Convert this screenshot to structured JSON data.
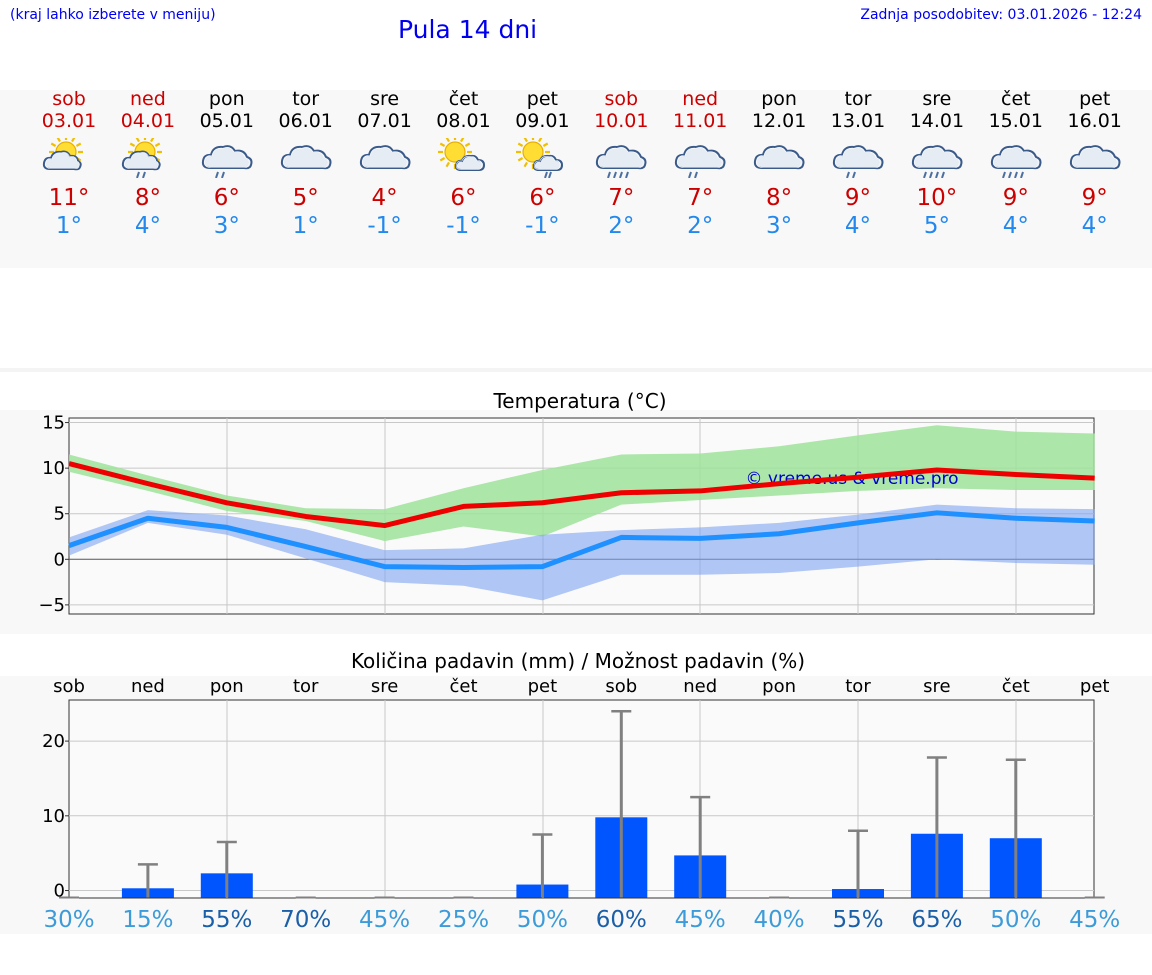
{
  "header": {
    "hint": "(kraj lahko izberete v meniju)",
    "title": "Pula 14 dni",
    "updated": "Zadnja posodobitev: 03.01.2026 - 12:24"
  },
  "colors": {
    "weekend": "#cc0000",
    "weekday": "#000000",
    "max": "#ee0000",
    "min": "#1e90ff",
    "bar": "#0055ff"
  },
  "days": [
    {
      "name": "sob",
      "date": "03.01",
      "weekend": true,
      "icon": "partly-cloudy-icon",
      "max": "11°",
      "min": "1°"
    },
    {
      "name": "ned",
      "date": "04.01",
      "weekend": true,
      "icon": "partly-cloudy-rain-icon",
      "max": "8°",
      "min": "4°"
    },
    {
      "name": "pon",
      "date": "05.01",
      "weekend": false,
      "icon": "cloud-rain-icon",
      "max": "6°",
      "min": "3°"
    },
    {
      "name": "tor",
      "date": "06.01",
      "weekend": false,
      "icon": "cloud-icon",
      "max": "5°",
      "min": "1°"
    },
    {
      "name": "sre",
      "date": "07.01",
      "weekend": false,
      "icon": "cloud-icon",
      "max": "4°",
      "min": "-1°"
    },
    {
      "name": "čet",
      "date": "08.01",
      "weekend": false,
      "icon": "sun-cloud-icon",
      "max": "6°",
      "min": "-1°"
    },
    {
      "name": "pet",
      "date": "09.01",
      "weekend": false,
      "icon": "sun-cloud-rain-icon",
      "max": "6°",
      "min": "-1°"
    },
    {
      "name": "sob",
      "date": "10.01",
      "weekend": true,
      "icon": "cloud-heavy-rain-icon",
      "max": "7°",
      "min": "2°"
    },
    {
      "name": "ned",
      "date": "11.01",
      "weekend": true,
      "icon": "cloud-rain-icon",
      "max": "7°",
      "min": "2°"
    },
    {
      "name": "pon",
      "date": "12.01",
      "weekend": false,
      "icon": "cloud-icon",
      "max": "8°",
      "min": "3°"
    },
    {
      "name": "tor",
      "date": "13.01",
      "weekend": false,
      "icon": "cloud-rain-icon",
      "max": "9°",
      "min": "4°"
    },
    {
      "name": "sre",
      "date": "14.01",
      "weekend": false,
      "icon": "cloud-heavy-rain-icon",
      "max": "10°",
      "min": "5°"
    },
    {
      "name": "čet",
      "date": "15.01",
      "weekend": false,
      "icon": "cloud-heavy-rain-icon",
      "max": "9°",
      "min": "4°"
    },
    {
      "name": "pet",
      "date": "16.01",
      "weekend": false,
      "icon": "cloud-icon",
      "max": "9°",
      "min": "4°"
    }
  ],
  "chart_data": [
    {
      "type": "line",
      "title": "Temperatura (°C)",
      "watermark": "© vreme.us & vreme.pro",
      "ylim": [
        -6,
        15.5
      ],
      "yticks": [
        15,
        10,
        5,
        0,
        -5
      ],
      "ytick_labels": [
        "15",
        "10",
        "5",
        "0",
        "−5"
      ],
      "grid": true,
      "series": [
        {
          "name": "max",
          "values": [
            10.5,
            8.3,
            6.2,
            4.7,
            3.7,
            5.8,
            6.2,
            7.3,
            7.5,
            8.3,
            9.0,
            9.8,
            9.3,
            8.9
          ]
        },
        {
          "name": "min",
          "values": [
            1.5,
            4.5,
            3.5,
            1.4,
            -0.8,
            -0.9,
            -0.8,
            2.4,
            2.3,
            2.8,
            4.0,
            5.1,
            4.5,
            4.2
          ]
        }
      ],
      "bands": [
        {
          "name": "max_range",
          "upper": [
            11.5,
            9.2,
            7.0,
            5.6,
            5.5,
            7.8,
            9.8,
            11.5,
            11.6,
            12.4,
            13.6,
            14.7,
            14.0,
            13.8
          ],
          "lower": [
            9.6,
            7.5,
            5.3,
            4.2,
            2.0,
            3.6,
            2.5,
            6.0,
            6.5,
            7.0,
            7.5,
            7.8,
            7.6,
            7.6
          ]
        },
        {
          "name": "min_range",
          "upper": [
            2.4,
            5.4,
            4.8,
            3.3,
            1.0,
            1.2,
            2.7,
            3.2,
            3.5,
            4.0,
            4.9,
            6.0,
            5.6,
            5.5
          ],
          "lower": [
            0.4,
            4.0,
            2.7,
            0.1,
            -2.5,
            -2.9,
            -4.5,
            -1.7,
            -1.7,
            -1.5,
            -0.8,
            0.0,
            -0.4,
            -0.6
          ]
        }
      ]
    },
    {
      "type": "bar",
      "title": "Količina padavin (mm) / Možnost padavin (%)",
      "categories": [
        "sob",
        "ned",
        "pon",
        "tor",
        "sre",
        "čet",
        "pet",
        "sob",
        "ned",
        "pon",
        "tor",
        "sre",
        "čet",
        "pet"
      ],
      "values": [
        0,
        0.3,
        2.3,
        0,
        0,
        0,
        0.8,
        9.8,
        4.7,
        0,
        0.2,
        7.6,
        7.0,
        0
      ],
      "error_high": [
        0,
        3.5,
        6.5,
        0,
        0,
        0,
        7.5,
        24.0,
        12.5,
        0,
        8.0,
        17.8,
        17.5,
        0
      ],
      "chance": [
        "30%",
        "15%",
        "55%",
        "70%",
        "45%",
        "25%",
        "50%",
        "60%",
        "45%",
        "40%",
        "55%",
        "65%",
        "50%",
        "45%"
      ],
      "ylim": [
        -1,
        25.5
      ],
      "yticks": [
        20,
        10,
        0
      ],
      "ytick_labels": [
        "20",
        "10",
        "0"
      ],
      "grid": true
    }
  ]
}
